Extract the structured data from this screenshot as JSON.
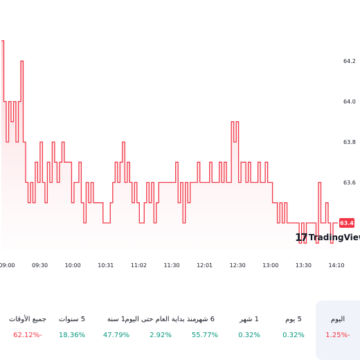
{
  "chart_data": {
    "type": "area",
    "x_ticks": [
      "09:00",
      "09:30",
      "10:00",
      "10:31",
      "11:02",
      "11:30",
      "12:01",
      "12:30",
      "13:00",
      "13:30",
      "14:10"
    ],
    "y_ticks": [
      63.6,
      63.8,
      64.0,
      64.2
    ],
    "ylim": [
      63.27,
      64.44
    ],
    "last_price_label": "63.4",
    "colors": {
      "line": "#f23645",
      "fill_top": "#f9c7cd",
      "label_bg": "#f23645"
    },
    "values": [
      64.3,
      64.0,
      63.8,
      64.0,
      63.9,
      64.0,
      63.8,
      64.0,
      64.2,
      63.8,
      63.6,
      63.5,
      63.6,
      63.5,
      63.7,
      63.6,
      63.8,
      63.6,
      63.5,
      63.7,
      63.6,
      63.8,
      63.7,
      63.6,
      63.7,
      63.8,
      63.7,
      63.7,
      63.7,
      63.5,
      63.6,
      63.6,
      63.7,
      63.5,
      63.4,
      63.6,
      63.5,
      63.6,
      63.5,
      63.5,
      63.5,
      63.5,
      63.4,
      63.4,
      63.4,
      63.5,
      63.6,
      63.7,
      63.6,
      63.7,
      63.8,
      63.6,
      63.7,
      63.6,
      63.5,
      63.6,
      63.5,
      63.4,
      63.4,
      63.5,
      63.6,
      63.5,
      63.6,
      63.4,
      63.5,
      63.6,
      63.6,
      63.6,
      63.6,
      63.6,
      63.6,
      63.6,
      63.7,
      63.5,
      63.6,
      63.4,
      63.6,
      63.5,
      63.6,
      63.6,
      63.6,
      63.7,
      63.6,
      63.6,
      63.6,
      63.6,
      63.7,
      63.6,
      63.6,
      63.6,
      63.7,
      63.6,
      63.7,
      63.6,
      63.6,
      63.9,
      63.8,
      63.9,
      63.6,
      63.7,
      63.7,
      63.6,
      63.7,
      63.6,
      63.6,
      63.6,
      63.7,
      63.6,
      63.6,
      63.7,
      63.6,
      63.6,
      63.5,
      63.5,
      63.4,
      63.5,
      63.4,
      63.5,
      63.4,
      63.4,
      63.4,
      63.4,
      63.4,
      63.3,
      63.4,
      63.3,
      63.4,
      63.4,
      63.4,
      63.4,
      63.3,
      63.6,
      63.4,
      63.4,
      63.5,
      63.4,
      63.3,
      63.4,
      63.4,
      63.4
    ]
  },
  "logo": {
    "text": "TradingView",
    "mark": "17"
  },
  "periods": [
    {
      "label": "اليوم",
      "value": "1.25%-",
      "trend": "neg",
      "selected": true
    },
    {
      "label": "5 يوم",
      "value": "0.32%",
      "trend": "pos",
      "selected": false
    },
    {
      "label": "1 شهر",
      "value": "0.32%",
      "trend": "pos",
      "selected": false
    },
    {
      "label": "6 شهر",
      "value": "55.77%",
      "trend": "pos",
      "selected": false
    },
    {
      "label": "منذ بداية العام حتى اليوم",
      "value": "2.92%",
      "trend": "pos",
      "selected": false
    },
    {
      "label": "1 سنة",
      "value": "47.79%",
      "trend": "pos",
      "selected": false
    },
    {
      "label": "5 سنوات",
      "value": "18.36%",
      "trend": "pos",
      "selected": false
    },
    {
      "label": "جميع الأوقات",
      "value": "62.12%-",
      "trend": "neg",
      "selected": false
    }
  ]
}
